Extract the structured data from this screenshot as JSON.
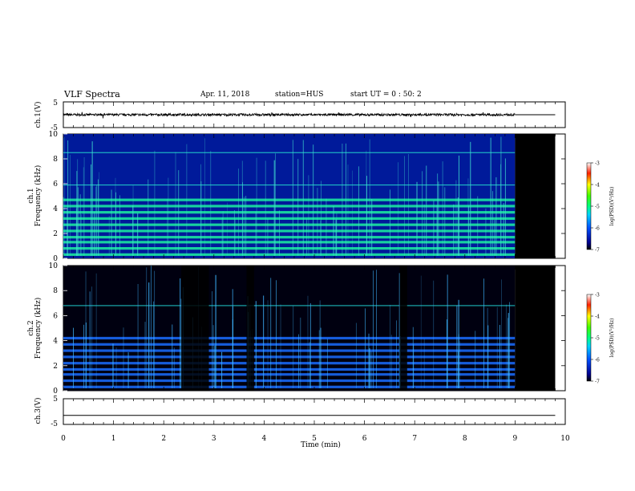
{
  "header": {
    "title": "VLF Spectra",
    "date": "Apr. 11, 2018",
    "station": "station=HUS",
    "start": "start  UT =   0 : 50: 2"
  },
  "chart_data": [
    {
      "type": "line",
      "panel": "ch1-waveform",
      "ylabel": "ch.1(V)",
      "xlim": [
        0,
        10
      ],
      "ylim": [
        -5,
        5
      ],
      "yticks": [
        5,
        -5
      ],
      "series": [
        {
          "trace": "noisy waveform near 0 V",
          "extent_min": [
            0,
            9.0
          ]
        }
      ],
      "after_data_level": 0
    },
    {
      "type": "heatmap",
      "panel": "ch1-spectrogram",
      "ylabel": "Frequency (kHz)",
      "channel_label": "ch.1",
      "xlim": [
        0,
        10
      ],
      "ylim": [
        0,
        10
      ],
      "yticks": [
        0,
        2,
        4,
        6,
        8,
        10
      ],
      "data_end_min": 9.0,
      "no_data_end_min": 9.8,
      "bands_kHz": [
        0.3,
        0.8,
        1.3,
        1.7,
        2.2,
        2.7,
        3.2,
        3.7,
        4.2,
        4.7,
        5.9,
        8.5
      ],
      "colorbar": {
        "label": "log(PSD)(V²/Hz)",
        "range": [
          -7,
          -3
        ],
        "ticks": [
          "-3",
          "-4",
          "-5",
          "-6",
          "-7"
        ]
      }
    },
    {
      "type": "heatmap",
      "panel": "ch2-spectrogram",
      "ylabel": "Frequency (kHz)",
      "channel_label": "ch.2",
      "xlim": [
        0,
        10
      ],
      "ylim": [
        0,
        10
      ],
      "yticks": [
        0,
        2,
        4,
        6,
        8,
        10
      ],
      "data_end_min": 9.0,
      "no_data_end_min": 9.8,
      "bands_kHz": [
        0.3,
        0.8,
        1.3,
        1.7,
        2.2,
        2.7,
        3.2,
        3.7,
        4.2,
        6.8
      ],
      "gaps_min": [
        [
          2.35,
          2.9
        ],
        [
          3.65,
          3.8
        ],
        [
          6.7,
          6.85
        ]
      ],
      "colorbar": {
        "label": "log(PSD)(V²/Hz)",
        "range": [
          -7,
          -3
        ],
        "ticks": [
          "-3",
          "-4",
          "-5",
          "-6",
          "-7"
        ]
      }
    },
    {
      "type": "line",
      "panel": "ch3-waveform",
      "ylabel": "ch.3(V)",
      "xlabel": "Time (min)",
      "xlim": [
        0,
        10
      ],
      "ylim": [
        -5,
        5
      ],
      "yticks": [
        5,
        -5
      ],
      "xticks": [
        0,
        1,
        2,
        3,
        4,
        5,
        6,
        7,
        8,
        9,
        10
      ],
      "series": [
        {
          "trace": "flat line",
          "level": -1.5
        }
      ]
    }
  ]
}
